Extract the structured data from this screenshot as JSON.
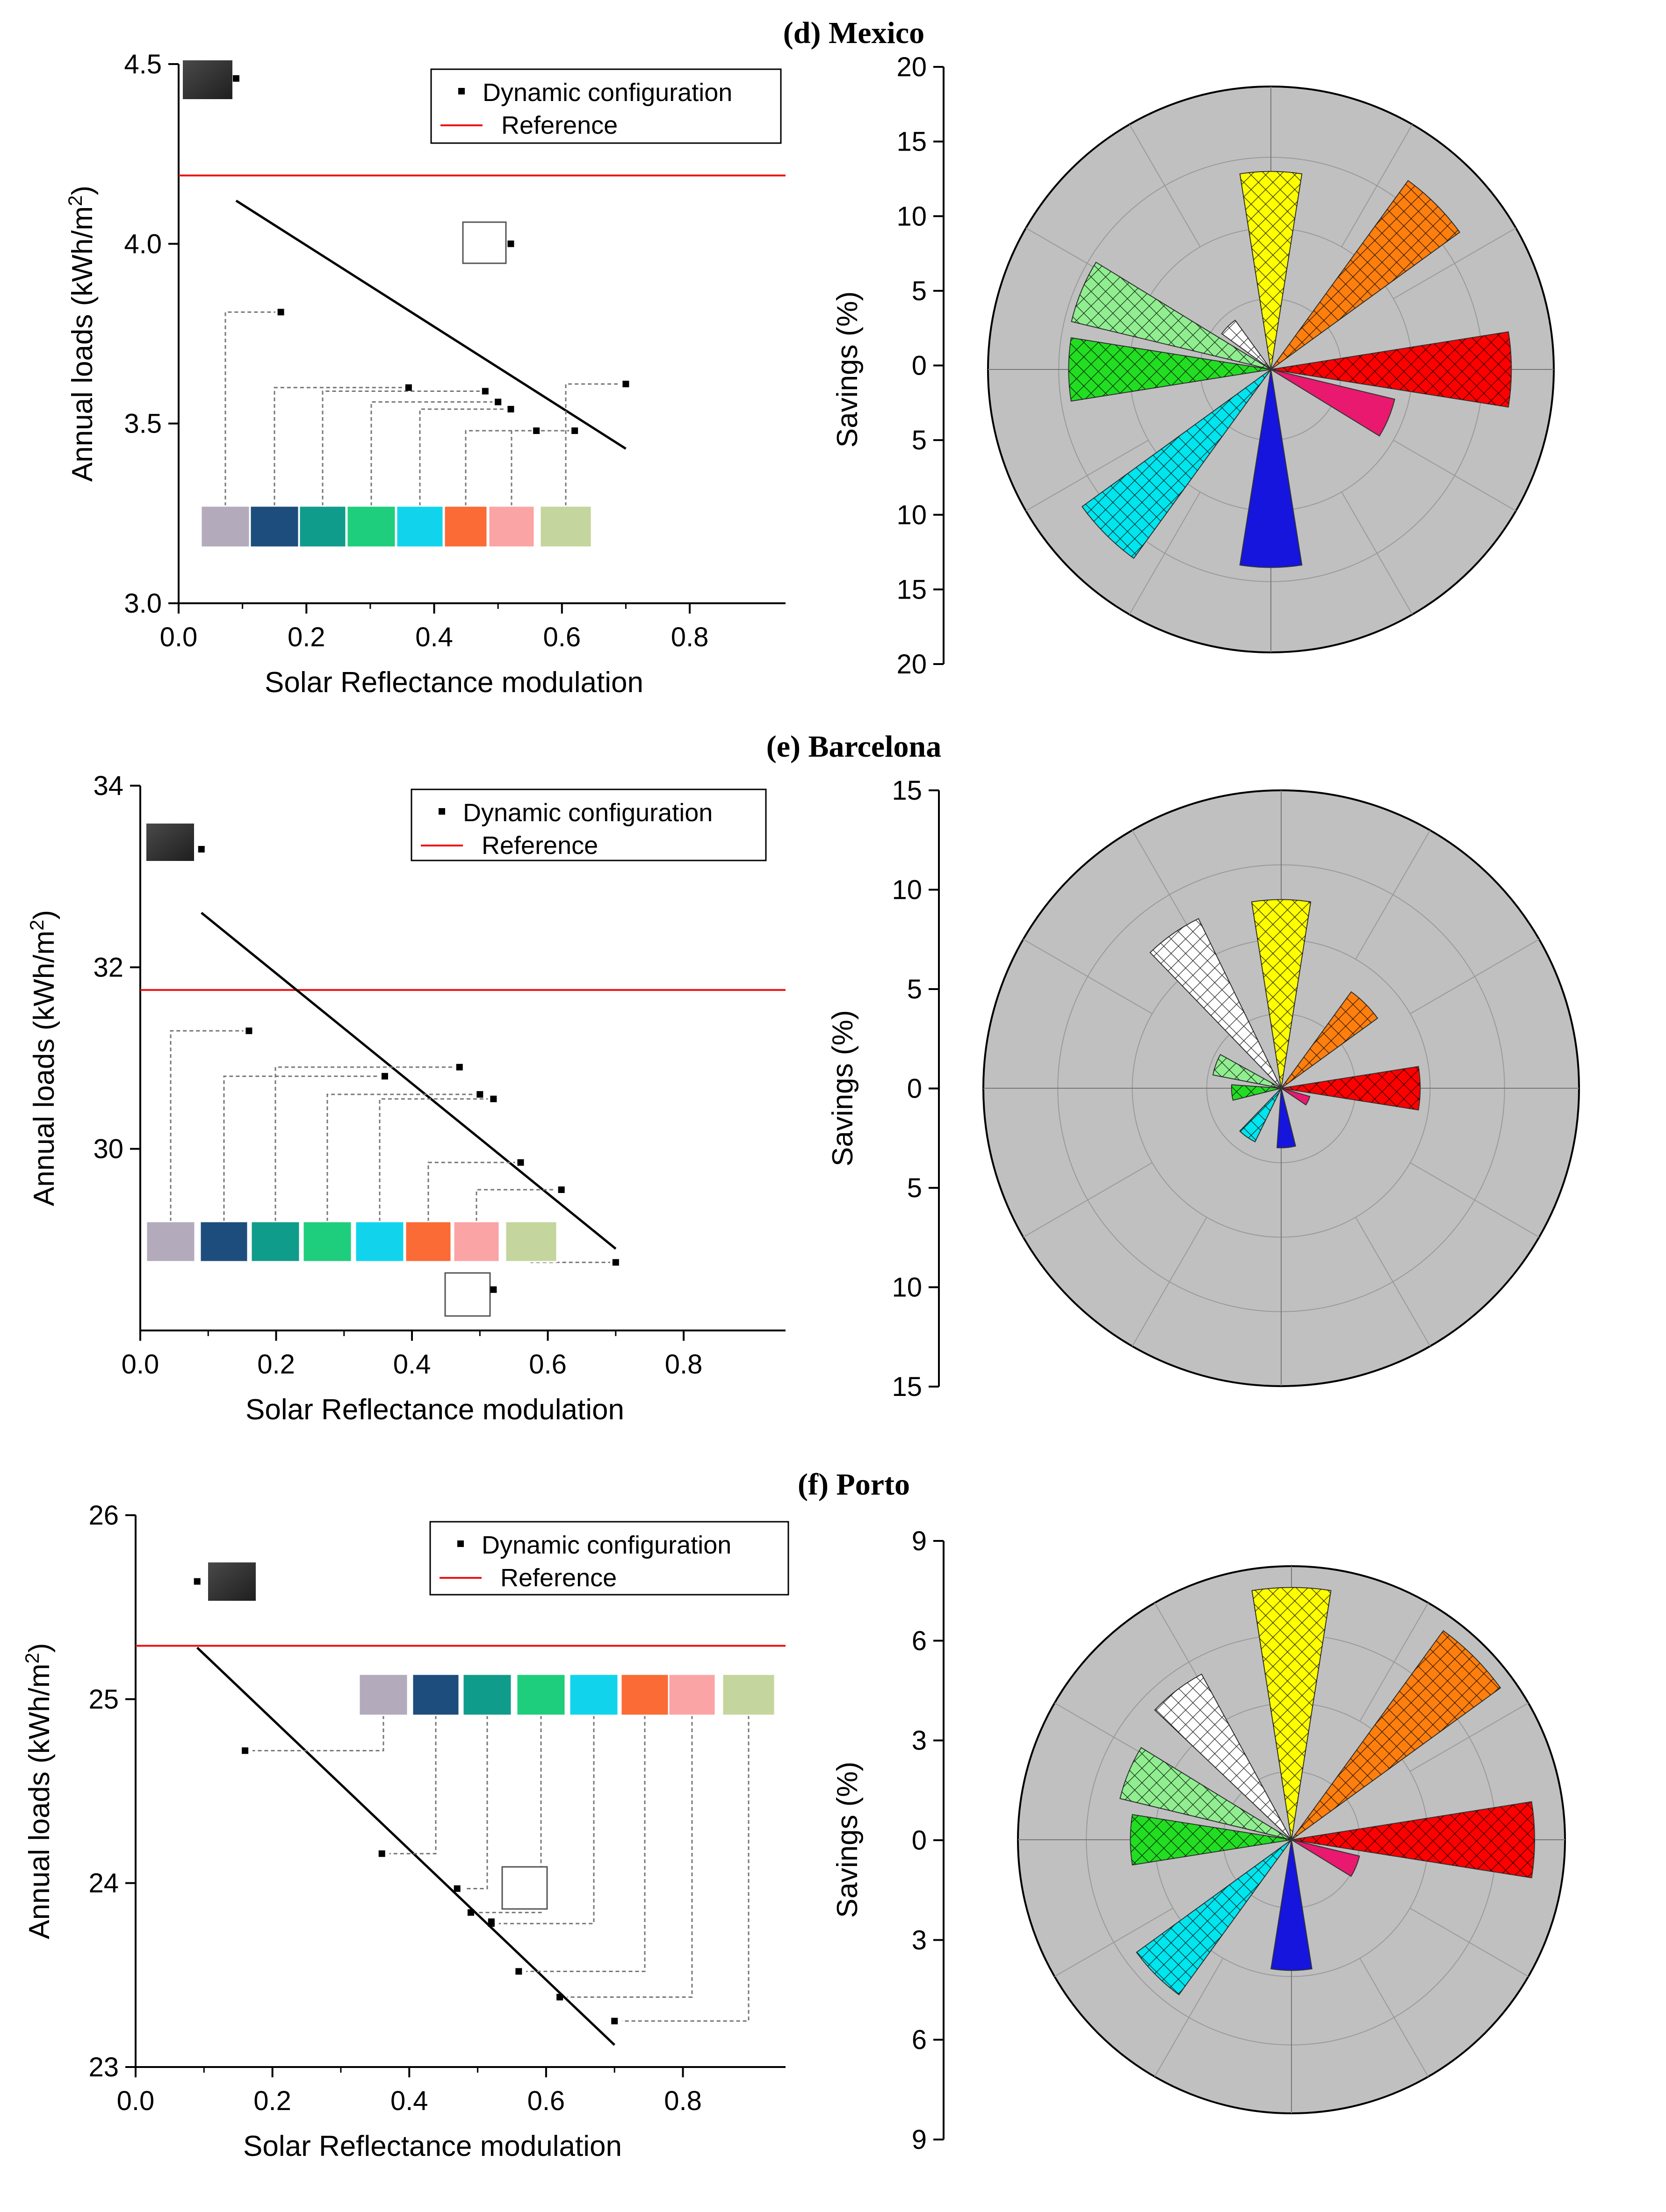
{
  "colors": {
    "reference": "#ee1111",
    "fit": "#000000",
    "polar_bg": "#c0c0c0",
    "polar_grid": "#9a9a9a",
    "leader": "#777777",
    "petal": {
      "red": "#ff0000",
      "orange": "#ff7f0e",
      "yellow": "#ffff00",
      "white": "#ffffff",
      "lightgreen": "#90ee90",
      "green": "#22dd22",
      "cyan": "#00e5ee",
      "blue": "#1515dd",
      "pink": "#e8196e"
    },
    "swatches": {
      "black": "#2d2d2d",
      "white": "#ffffff",
      "lavender": "#b3aabb",
      "navy": "#1d4d7c",
      "teal": "#109c8a",
      "green": "#1fce7c",
      "cyan": "#11d4ec",
      "orange": "#fb6b35",
      "pink": "#fba4a6",
      "olive": "#c4d59d"
    }
  },
  "chart_data": [
    {
      "type": "scatter",
      "panel": "d",
      "title": "(d) Mexico",
      "xlabel": "Solar Reflectance modulation",
      "ylabel": "Annual loads (kWh/m2)",
      "xlim": [
        0,
        0.95
      ],
      "ylim": [
        3.0,
        4.5
      ],
      "xticks": [
        "0.0",
        "0.2",
        "0.4",
        "0.6",
        "0.8"
      ],
      "yticks": [
        "3.0",
        "3.5",
        "4.0",
        "4.5"
      ],
      "legend": [
        "Dynamic configuration",
        "Reference"
      ],
      "reference": 4.19,
      "fit": {
        "x": [
          0.09,
          0.7
        ],
        "y": [
          4.12,
          3.43
        ]
      },
      "points": [
        {
          "swatch": "black",
          "x": 0.09,
          "y": 4.46
        },
        {
          "swatch": "white",
          "x": 0.52,
          "y": 4.0
        },
        {
          "swatch": "lavender",
          "x": 0.16,
          "y": 3.81
        },
        {
          "swatch": "navy",
          "x": 0.36,
          "y": 3.6
        },
        {
          "swatch": "teal",
          "x": 0.48,
          "y": 3.59
        },
        {
          "swatch": "green",
          "x": 0.5,
          "y": 3.56
        },
        {
          "swatch": "cyan",
          "x": 0.52,
          "y": 3.54
        },
        {
          "swatch": "orange",
          "x": 0.56,
          "y": 3.48
        },
        {
          "swatch": "pink",
          "x": 0.62,
          "y": 3.48
        },
        {
          "swatch": "olive",
          "x": 0.7,
          "y": 3.61
        }
      ]
    },
    {
      "type": "polar-bar",
      "panel": "d",
      "ylabel": "Savings (%)",
      "rmax": 20,
      "rticks": [
        "20",
        "15",
        "10",
        "5",
        "0",
        "5",
        "10",
        "15",
        "20"
      ],
      "petals": [
        {
          "color": "red",
          "angle": 90,
          "value": 17,
          "hatched": true
        },
        {
          "color": "orange",
          "angle": 45,
          "value": 16.5,
          "hatched": true
        },
        {
          "color": "yellow",
          "angle": 0,
          "value": 14,
          "hatched": true
        },
        {
          "color": "white",
          "angle": -45,
          "value": 4.3,
          "hatched": true
        },
        {
          "color": "lightgreen",
          "angle": -67.5,
          "value": 14.5,
          "hatched": true
        },
        {
          "color": "green",
          "angle": -90,
          "value": 14.3,
          "hatched": true
        },
        {
          "color": "cyan",
          "angle": -135,
          "value": 16.5,
          "hatched": true
        },
        {
          "color": "blue",
          "angle": 180,
          "value": 14,
          "hatched": false
        },
        {
          "color": "pink",
          "angle": 112.5,
          "value": 9,
          "hatched": false
        }
      ]
    },
    {
      "type": "scatter",
      "panel": "e",
      "title": "(e) Barcelona",
      "xlabel": "Solar Reflectance modulation",
      "ylabel": "Annual loads (kWh/m2)",
      "xlim": [
        0,
        0.95
      ],
      "ylim": [
        28,
        34
      ],
      "xticks": [
        "0.0",
        "0.2",
        "0.4",
        "0.6",
        "0.8"
      ],
      "yticks": [
        "30",
        "32",
        "34"
      ],
      "legend": [
        "Dynamic configuration",
        "Reference"
      ],
      "reference": 31.75,
      "fit": {
        "x": [
          0.09,
          0.7
        ],
        "y": [
          32.6,
          28.9
        ]
      },
      "points": [
        {
          "swatch": "black",
          "x": 0.09,
          "y": 33.3
        },
        {
          "swatch": "white",
          "x": 0.52,
          "y": 28.45
        },
        {
          "swatch": "lavender",
          "x": 0.16,
          "y": 31.3
        },
        {
          "swatch": "navy",
          "x": 0.36,
          "y": 30.8
        },
        {
          "swatch": "teal",
          "x": 0.47,
          "y": 30.9
        },
        {
          "swatch": "green",
          "x": 0.5,
          "y": 30.6
        },
        {
          "swatch": "cyan",
          "x": 0.52,
          "y": 30.55
        },
        {
          "swatch": "orange",
          "x": 0.56,
          "y": 29.85
        },
        {
          "swatch": "pink",
          "x": 0.62,
          "y": 29.55
        },
        {
          "swatch": "olive",
          "x": 0.7,
          "y": 28.75
        }
      ]
    },
    {
      "type": "polar-bar",
      "panel": "e",
      "ylabel": "Savings (%)",
      "rmax": 15,
      "rticks": [
        "15",
        "10",
        "5",
        "0",
        "5",
        "10",
        "15"
      ],
      "petals": [
        {
          "color": "red",
          "angle": 90,
          "value": 7,
          "hatched": true
        },
        {
          "color": "orange",
          "angle": 45,
          "value": 6,
          "hatched": true
        },
        {
          "color": "yellow",
          "angle": 0,
          "value": 9.5,
          "hatched": true
        },
        {
          "color": "white",
          "angle": -35,
          "value": 9.5,
          "hatched": true
        },
        {
          "color": "lightgreen",
          "angle": -70,
          "value": 3.5,
          "hatched": true
        },
        {
          "color": "green",
          "angle": -95,
          "value": 2.5,
          "hatched": true
        },
        {
          "color": "cyan",
          "angle": -145,
          "value": 3,
          "hatched": true
        },
        {
          "color": "blue",
          "angle": 175,
          "value": 3,
          "hatched": false
        },
        {
          "color": "pink",
          "angle": 115,
          "value": 1.5,
          "hatched": false
        }
      ]
    },
    {
      "type": "scatter",
      "panel": "f",
      "title": "(f) Porto",
      "xlabel": "Solar Reflectance modulation",
      "ylabel": "Annual loads (kWh/m2)",
      "xlim": [
        0,
        0.95
      ],
      "ylim": [
        23,
        26
      ],
      "xticks": [
        "0.0",
        "0.2",
        "0.4",
        "0.6",
        "0.8"
      ],
      "yticks": [
        "23",
        "24",
        "25",
        "26"
      ],
      "legend": [
        "Dynamic configuration",
        "Reference"
      ],
      "reference": 25.29,
      "fit": {
        "x": [
          0.09,
          0.7
        ],
        "y": [
          25.28,
          23.12
        ]
      },
      "points": [
        {
          "swatch": "black",
          "x": 0.09,
          "y": 25.64
        },
        {
          "swatch": "white",
          "x": 0.52,
          "y": 23.79
        },
        {
          "swatch": "lavender",
          "x": 0.16,
          "y": 24.72
        },
        {
          "swatch": "navy",
          "x": 0.36,
          "y": 24.16
        },
        {
          "swatch": "teal",
          "x": 0.47,
          "y": 23.97
        },
        {
          "swatch": "green",
          "x": 0.49,
          "y": 23.84
        },
        {
          "swatch": "cyan",
          "x": 0.52,
          "y": 23.78
        },
        {
          "swatch": "orange",
          "x": 0.56,
          "y": 23.52
        },
        {
          "swatch": "pink",
          "x": 0.62,
          "y": 23.38
        },
        {
          "swatch": "olive",
          "x": 0.7,
          "y": 23.25
        }
      ]
    },
    {
      "type": "polar-bar",
      "panel": "f",
      "ylabel": "Savings (%)",
      "rmax": 9,
      "rticks": [
        "9",
        "6",
        "3",
        "0",
        "3",
        "6",
        "9"
      ],
      "petals": [
        {
          "color": "red",
          "angle": 90,
          "value": 8,
          "hatched": true
        },
        {
          "color": "orange",
          "angle": 45,
          "value": 8.5,
          "hatched": true
        },
        {
          "color": "yellow",
          "angle": 0,
          "value": 8.3,
          "hatched": true
        },
        {
          "color": "white",
          "angle": -37.5,
          "value": 6.2,
          "hatched": true
        },
        {
          "color": "lightgreen",
          "angle": -67.5,
          "value": 5.8,
          "hatched": true
        },
        {
          "color": "green",
          "angle": -90,
          "value": 5.3,
          "hatched": true
        },
        {
          "color": "cyan",
          "angle": -135,
          "value": 6.3,
          "hatched": true
        },
        {
          "color": "blue",
          "angle": 180,
          "value": 4.3,
          "hatched": false
        },
        {
          "color": "pink",
          "angle": 112.5,
          "value": 2.3,
          "hatched": false
        }
      ]
    }
  ]
}
